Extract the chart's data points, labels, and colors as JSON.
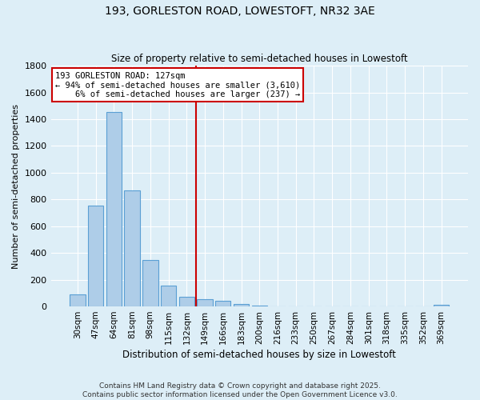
{
  "title_line1": "193, GORLESTON ROAD, LOWESTOFT, NR32 3AE",
  "title_line2": "Size of property relative to semi-detached houses in Lowestoft",
  "xlabel": "Distribution of semi-detached houses by size in Lowestoft",
  "ylabel": "Number of semi-detached properties",
  "categories": [
    "30sqm",
    "47sqm",
    "64sqm",
    "81sqm",
    "98sqm",
    "115sqm",
    "132sqm",
    "149sqm",
    "166sqm",
    "183sqm",
    "200sqm",
    "216sqm",
    "233sqm",
    "250sqm",
    "267sqm",
    "284sqm",
    "301sqm",
    "318sqm",
    "335sqm",
    "352sqm",
    "369sqm"
  ],
  "values": [
    90,
    755,
    1455,
    865,
    350,
    155,
    75,
    55,
    40,
    18,
    8,
    3,
    2,
    1,
    0,
    0,
    0,
    0,
    0,
    0,
    10
  ],
  "bar_color": "#aecde8",
  "bar_edge_color": "#5a9fd4",
  "background_color": "#ddeef7",
  "grid_color": "#ffffff",
  "vline_x": 6.5,
  "vline_color": "#cc0000",
  "annotation_text": "193 GORLESTON ROAD: 127sqm\n← 94% of semi-detached houses are smaller (3,610)\n    6% of semi-detached houses are larger (237) →",
  "annotation_box_color": "#ffffff",
  "annotation_box_edge": "#cc0000",
  "ylim": [
    0,
    1800
  ],
  "yticks": [
    0,
    200,
    400,
    600,
    800,
    1000,
    1200,
    1400,
    1600,
    1800
  ],
  "footer_line1": "Contains HM Land Registry data © Crown copyright and database right 2025.",
  "footer_line2": "Contains public sector information licensed under the Open Government Licence v3.0."
}
